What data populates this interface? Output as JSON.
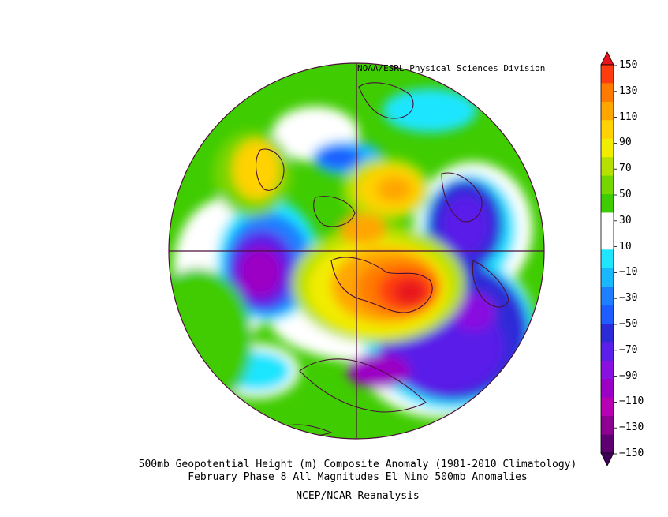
{
  "credit": "NOAA/ESRL Physical Sciences Division",
  "caption": {
    "line1": "500mb Geopotential Height (m) Composite Anomaly (1981-2010 Climatology)",
    "line2": "February Phase 8 All Magnitudes El Nino 500mb Anomalies",
    "line3": "NCEP/NCAR Reanalysis"
  },
  "colorbar": {
    "labels": [
      "150",
      "130",
      "110",
      "90",
      "70",
      "50",
      "30",
      "10",
      "-10",
      "-30",
      "-50",
      "-70",
      "-90",
      "-110",
      "-130",
      "-150"
    ],
    "colors": [
      "#e8121b",
      "#ff3c10",
      "#ff7a00",
      "#ffa600",
      "#ffd200",
      "#f2ec00",
      "#b6e000",
      "#77d500",
      "#3fcc00",
      "#ffffff",
      "#ffffff",
      "#1fe5ff",
      "#1ab8ff",
      "#1e7fff",
      "#1e5dff",
      "#2d2bd8",
      "#5a1fe8",
      "#8a10e0",
      "#9b00c4",
      "#b800b4",
      "#8e0092",
      "#5e0072",
      "#3f005a"
    ]
  }
}
